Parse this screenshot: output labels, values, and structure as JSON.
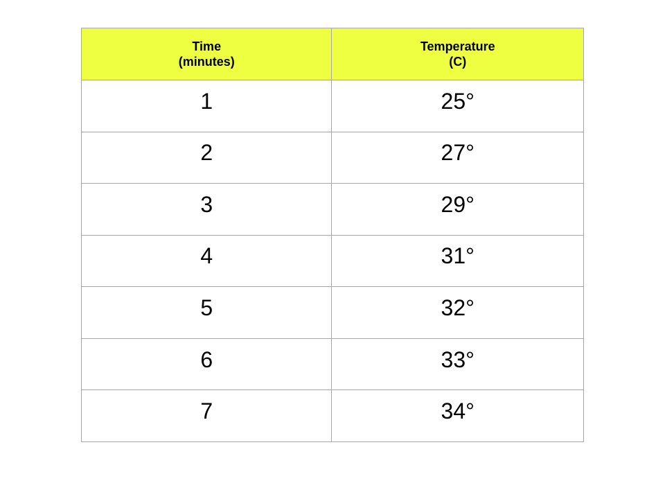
{
  "chart_data": {
    "type": "table",
    "header_color": "#eeff41",
    "columns": [
      {
        "line1": "Time",
        "line2": "(minutes)"
      },
      {
        "line1": "Temperature",
        "line2": "(C)"
      }
    ],
    "rows": [
      [
        "1",
        "25°"
      ],
      [
        "2",
        "27°"
      ],
      [
        "3",
        "29°"
      ],
      [
        "4",
        "31°"
      ],
      [
        "5",
        "32°"
      ],
      [
        "6",
        "33°"
      ],
      [
        "7",
        "34°"
      ]
    ]
  }
}
